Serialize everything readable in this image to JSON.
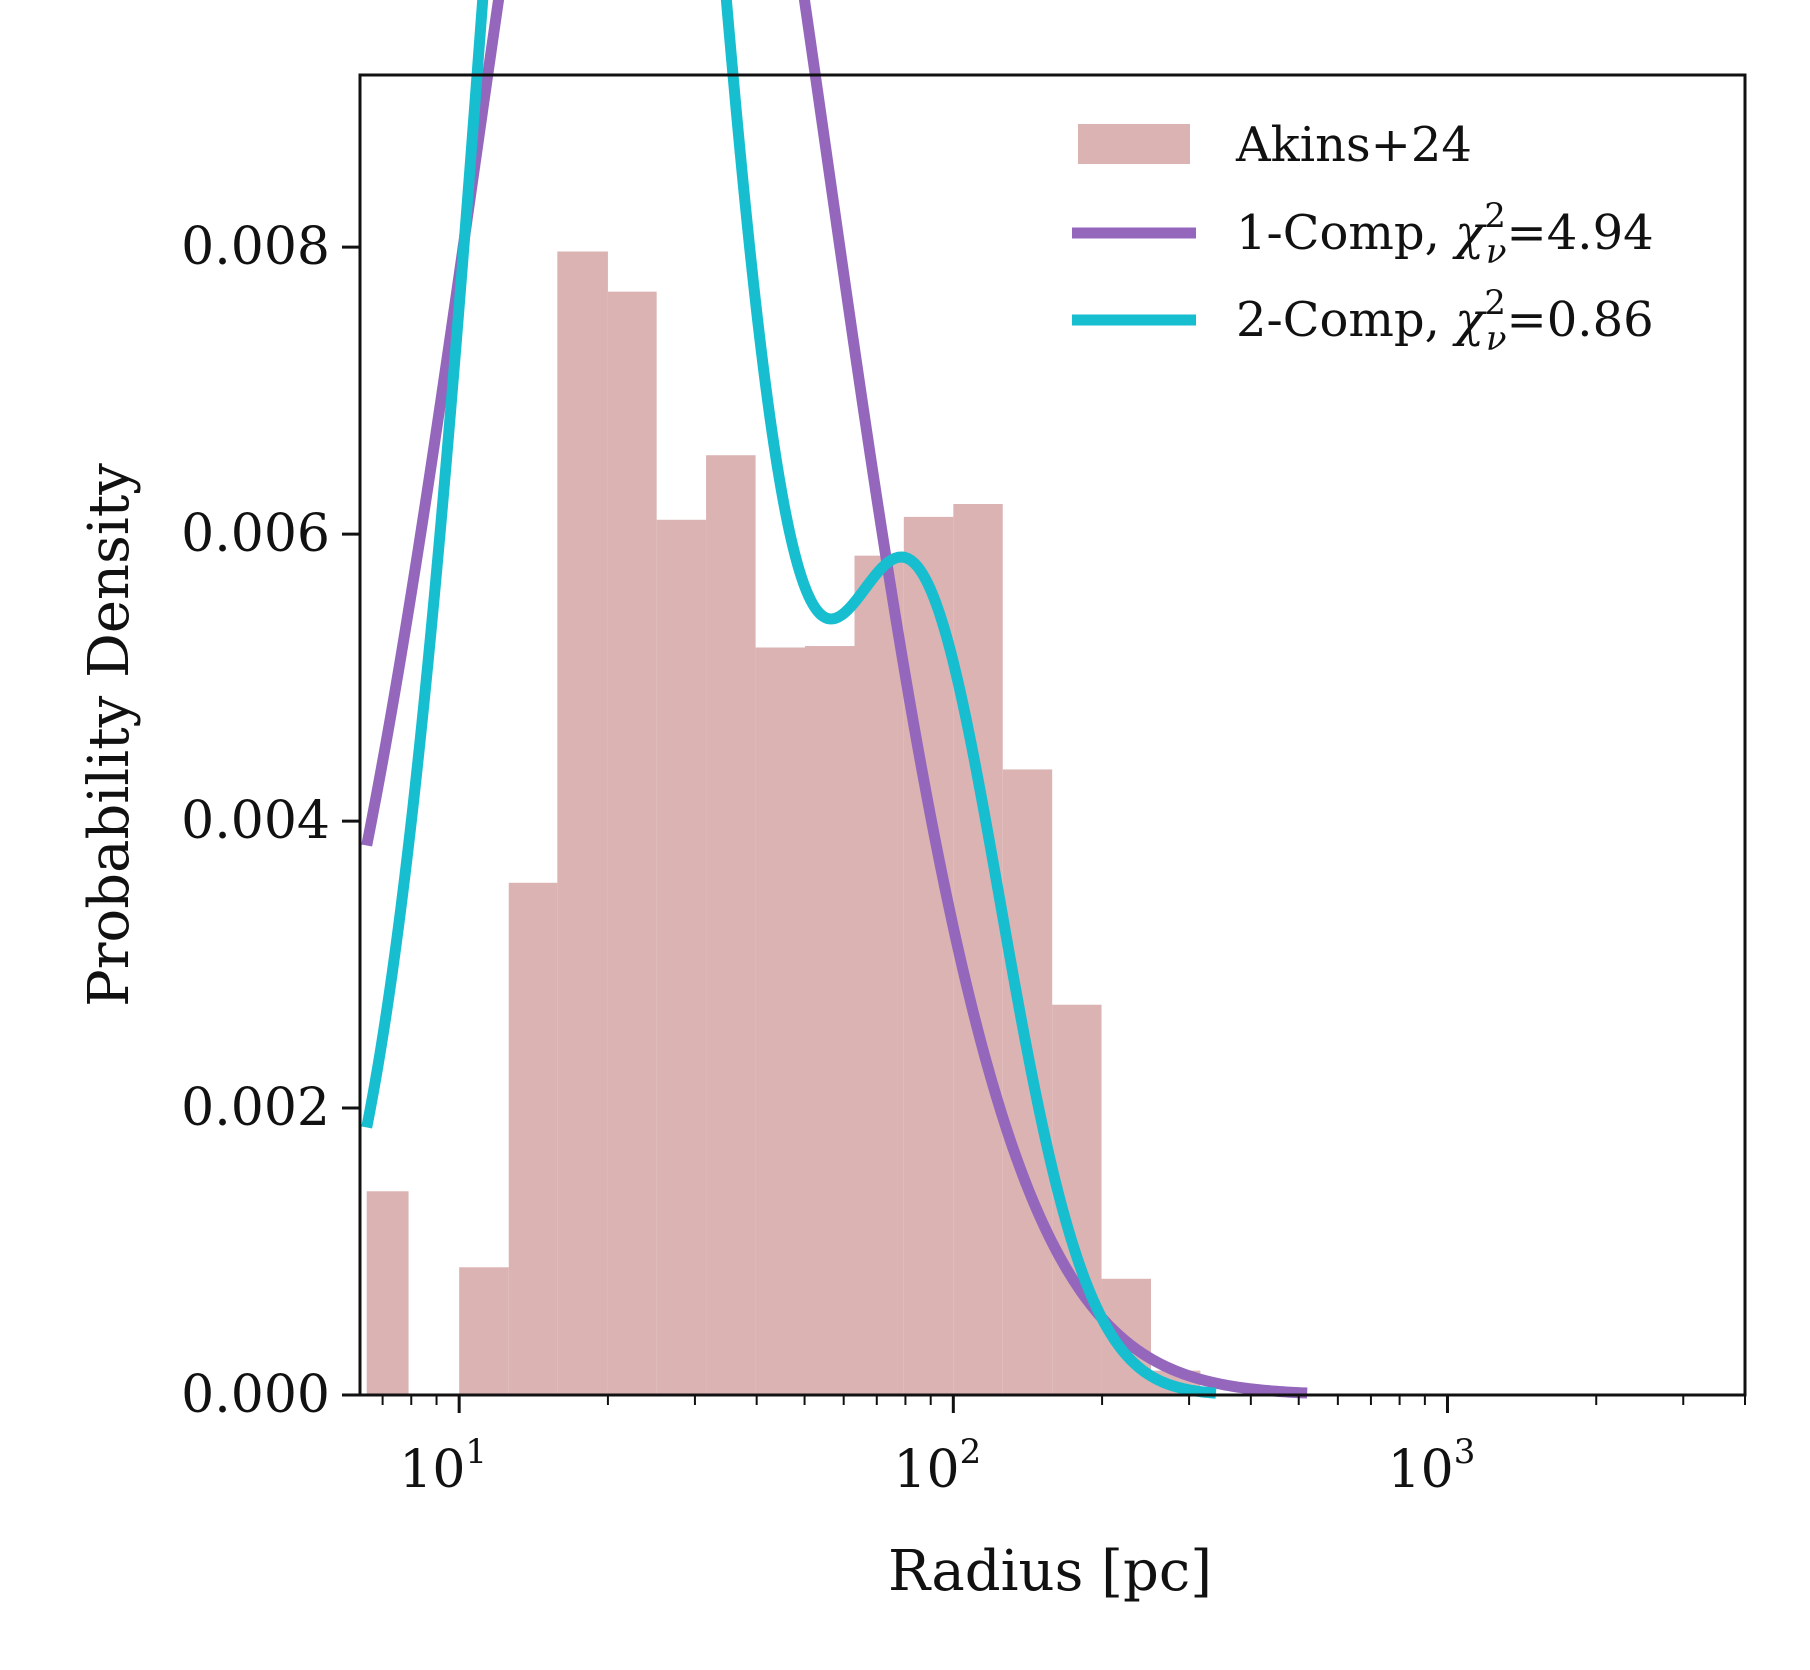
{
  "chart_data": {
    "type": "bar",
    "title": "",
    "xlabel": "Radius [pc]",
    "ylabel": "Probability Density",
    "xscale": "log",
    "xlim": [
      6.3,
      4000
    ],
    "ylim": [
      0,
      0.0092
    ],
    "grid": false,
    "legend_position": "top-right",
    "y_ticks": [
      {
        "value": 0.0,
        "label": "0.000"
      },
      {
        "value": 0.002,
        "label": "0.002"
      },
      {
        "value": 0.004,
        "label": "0.004"
      },
      {
        "value": 0.006,
        "label": "0.006"
      },
      {
        "value": 0.008,
        "label": "0.008"
      }
    ],
    "x_major_ticks": [
      {
        "value": 10,
        "base": "10",
        "exponent": "1"
      },
      {
        "value": 100,
        "base": "10",
        "exponent": "2"
      },
      {
        "value": 1000,
        "base": "10",
        "exponent": "3"
      }
    ],
    "histogram": {
      "name": "Akins+24",
      "color": "#dbb3b3",
      "bins": [
        {
          "x0": 6.5,
          "x1": 7.9,
          "value": 0.00142
        },
        {
          "x0": 7.9,
          "x1": 10.0,
          "value": 0.0
        },
        {
          "x0": 10.0,
          "x1": 12.6,
          "value": 0.00089
        },
        {
          "x0": 12.6,
          "x1": 15.8,
          "value": 0.00357
        },
        {
          "x0": 15.8,
          "x1": 20.0,
          "value": 0.00797
        },
        {
          "x0": 20.0,
          "x1": 25.1,
          "value": 0.00769
        },
        {
          "x0": 25.1,
          "x1": 31.6,
          "value": 0.0061
        },
        {
          "x0": 31.6,
          "x1": 39.8,
          "value": 0.00655
        },
        {
          "x0": 39.8,
          "x1": 50.1,
          "value": 0.00521
        },
        {
          "x0": 50.1,
          "x1": 63.1,
          "value": 0.00522
        },
        {
          "x0": 63.1,
          "x1": 79.4,
          "value": 0.00585
        },
        {
          "x0": 79.4,
          "x1": 100.0,
          "value": 0.00612
        },
        {
          "x0": 100.0,
          "x1": 125.9,
          "value": 0.00621
        },
        {
          "x0": 125.9,
          "x1": 158.5,
          "value": 0.00436
        },
        {
          "x0": 158.5,
          "x1": 199.5,
          "value": 0.00272
        },
        {
          "x0": 199.5,
          "x1": 251.2,
          "value": 0.00081
        },
        {
          "x0": 251.2,
          "x1": 316.2,
          "value": 0.00017
        }
      ]
    },
    "series": [
      {
        "name": "1-Comp",
        "chi_label": "χ",
        "chi_sup": "2",
        "chi_sub": "ν",
        "chi_value": "=4.94",
        "color": "#9467bd",
        "type": "lognormal",
        "components": [
          {
            "weight": 1.0,
            "median": 48.0,
            "sigma_ln": 0.82
          }
        ],
        "x_range": [
          6.5,
          520
        ]
      },
      {
        "name": "2-Comp",
        "chi_label": "χ",
        "chi_sup": "2",
        "chi_sub": "ν",
        "chi_value": "=0.86",
        "color": "#17becf",
        "type": "lognormal_mixture",
        "components": [
          {
            "weight": 0.5,
            "median": 25.5,
            "sigma_ln": 0.52
          },
          {
            "weight": 0.5,
            "median": 99.0,
            "sigma_ln": 0.4
          }
        ],
        "x_range": [
          6.5,
          340
        ]
      }
    ]
  }
}
